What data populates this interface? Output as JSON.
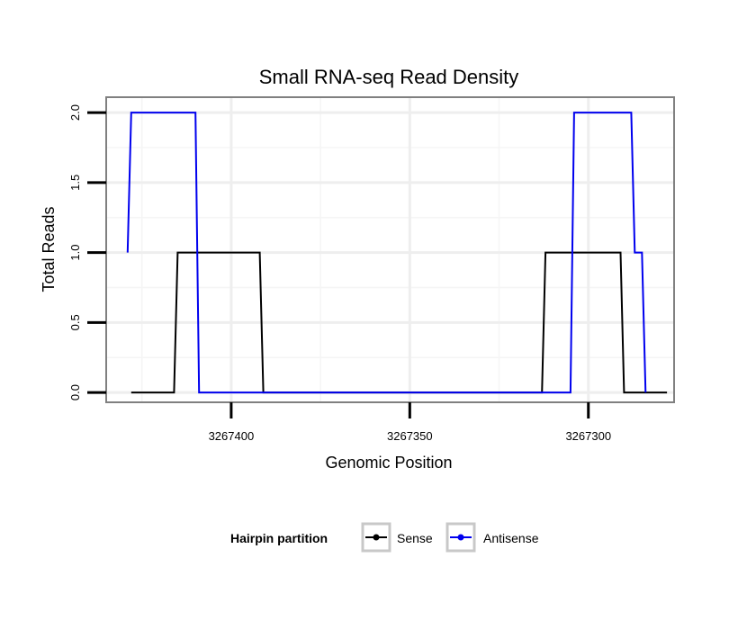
{
  "chart_data": {
    "type": "line",
    "title": "Small RNA-seq Read Density",
    "xlabel": "Genomic Position",
    "ylabel": "Total Reads",
    "x_reversed": true,
    "xlim": [
      3267435,
      3267276
    ],
    "ylim": [
      -0.07,
      2.11
    ],
    "x_ticks": [
      3267400,
      3267350,
      3267300
    ],
    "x_tick_labels": [
      "3267400",
      "3267350",
      "3267300"
    ],
    "y_ticks": [
      0,
      0.5,
      1,
      1.5,
      2
    ],
    "y_tick_labels": [
      "0.0",
      "0.5",
      "1.0",
      "1.5",
      "2.0"
    ],
    "grid": true,
    "legend": {
      "title": "Hairpin partition",
      "placement": "bottom",
      "entries": [
        {
          "label": "Sense",
          "color": "#000000"
        },
        {
          "label": "Antisense",
          "color": "#0000ee"
        }
      ]
    },
    "series": [
      {
        "name": "Sense",
        "color": "#000000",
        "x": [
          3267428,
          3267416,
          3267415,
          3267400,
          3267392,
          3267391,
          3267358,
          3267313,
          3267312,
          3267291,
          3267290,
          3267278
        ],
        "y": [
          0,
          0,
          1,
          1,
          1,
          0,
          0,
          0,
          1,
          1,
          0,
          0
        ]
      },
      {
        "name": "Antisense",
        "color": "#0000ee",
        "x": [
          3267429,
          3267428,
          3267410,
          3267409,
          3267395,
          3267340,
          3267305,
          3267304,
          3267288,
          3267287,
          3267286,
          3267285,
          3267284
        ],
        "y": [
          1,
          2,
          2,
          0,
          0,
          0,
          0,
          2,
          2,
          1,
          1,
          1,
          0
        ]
      }
    ]
  }
}
